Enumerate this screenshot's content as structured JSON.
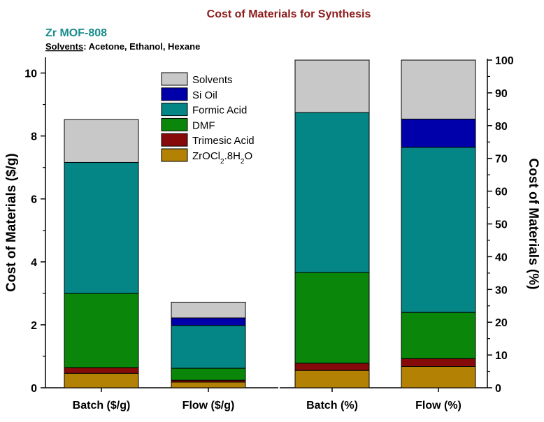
{
  "chart_data": {
    "type": "bar",
    "stacked": true,
    "title": "Cost of Materials for Synthesis",
    "subtitle": "Zr MOF-808",
    "note": {
      "label": "Solvents",
      "text": ": Acetone, Ethanol, Hexane"
    },
    "series_order": [
      "ZrOCl2.8H2O",
      "Trimesic Acid",
      "DMF",
      "Formic Acid",
      "Si Oil",
      "Solvents"
    ],
    "legend": [
      {
        "name": "Solvents",
        "color": "#c8c8c8"
      },
      {
        "name": "Si Oil",
        "color": "#0000aa"
      },
      {
        "name": "Formic Acid",
        "color": "#048686"
      },
      {
        "name": "DMF",
        "color": "#0a870a"
      },
      {
        "name": "Trimesic Acid",
        "color": "#870a0a"
      },
      {
        "name": "ZrOCl2.8H2O",
        "color": "#b38204",
        "label_base": "ZrOCl",
        "label_sub1": "2",
        "label_mid": ".8H",
        "label_sub2": "2",
        "label_end": "O"
      }
    ],
    "left_panel": {
      "ylabel": "Cost of Materials ($/g)",
      "ylim": [
        0,
        10.5
      ],
      "yticks": [
        "0",
        "2",
        "4",
        "6",
        "8",
        "10"
      ],
      "categories": [
        "Batch ($/g)",
        "Flow ($/g)"
      ],
      "series": [
        {
          "name": "ZrOCl2.8H2O",
          "values": [
            0.46,
            0.18
          ]
        },
        {
          "name": "Trimesic Acid",
          "values": [
            0.18,
            0.06
          ]
        },
        {
          "name": "DMF",
          "values": [
            2.36,
            0.38
          ]
        },
        {
          "name": "Formic Acid",
          "values": [
            4.16,
            1.36
          ]
        },
        {
          "name": "Si Oil",
          "values": [
            0,
            0.24
          ]
        },
        {
          "name": "Solvents",
          "values": [
            1.36,
            0.5
          ]
        }
      ]
    },
    "right_panel": {
      "ylabel": "Cost of Materials (%)",
      "ylim": [
        0,
        100
      ],
      "yticks": [
        "0",
        "10",
        "20",
        "30",
        "40",
        "50",
        "60",
        "70",
        "80",
        "90",
        "100"
      ],
      "categories": [
        "Batch (%)",
        "Flow (%)"
      ],
      "series": [
        {
          "name": "ZrOCl2.8H2O",
          "values": [
            5.3,
            6.5
          ]
        },
        {
          "name": "Trimesic Acid",
          "values": [
            2.2,
            2.4
          ]
        },
        {
          "name": "DMF",
          "values": [
            27.7,
            14.1
          ]
        },
        {
          "name": "Formic Acid",
          "values": [
            48.8,
            50.4
          ]
        },
        {
          "name": "Si Oil",
          "values": [
            0,
            8.6
          ]
        },
        {
          "name": "Solvents",
          "values": [
            16.0,
            18.0
          ]
        }
      ]
    }
  }
}
